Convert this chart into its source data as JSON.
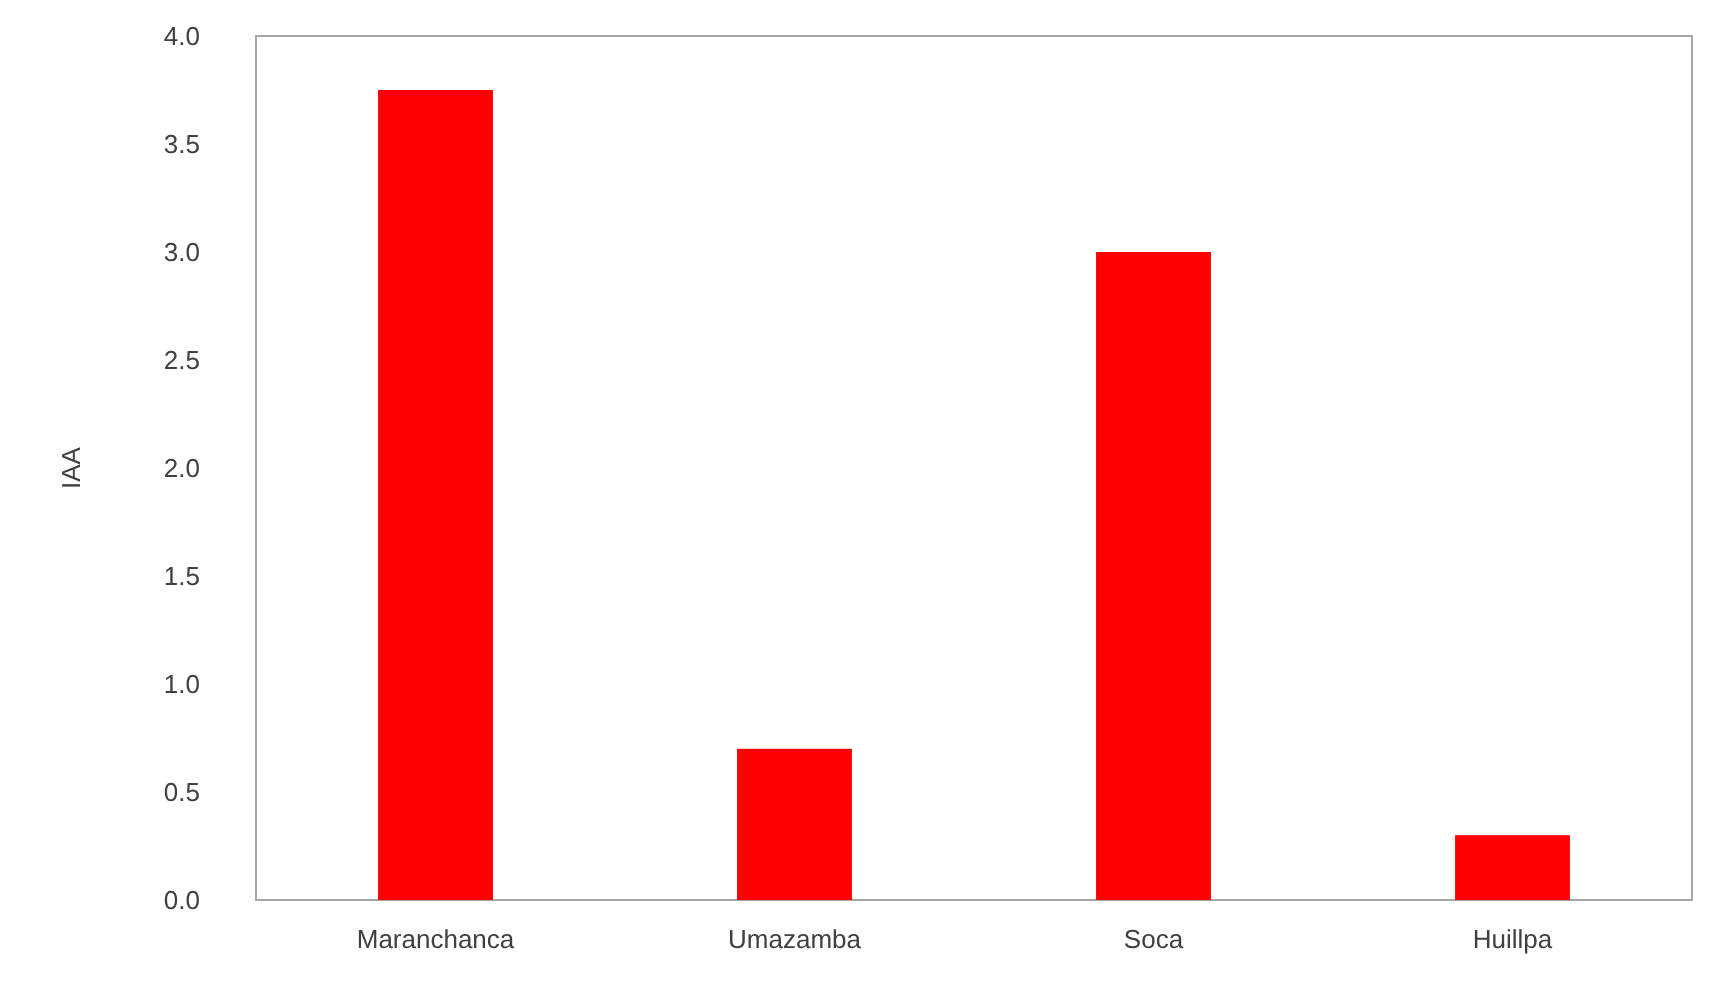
{
  "chart_data": {
    "type": "bar",
    "ylabel": "IAA",
    "categories": [
      "Maranchanca",
      "Umazamba",
      "Soca",
      "Huillpa"
    ],
    "values": [
      3.75,
      0.7,
      3.0,
      0.3
    ],
    "color": "#ff0000",
    "ylim": [
      0,
      4
    ],
    "yticks": [
      {
        "value": 0,
        "label": "0.0"
      },
      {
        "value": 0.5,
        "label": "0.5"
      },
      {
        "value": 1,
        "label": "1.0"
      },
      {
        "value": 1.5,
        "label": "1.5"
      },
      {
        "value": 2,
        "label": "2.0"
      },
      {
        "value": 2.5,
        "label": "2.5"
      },
      {
        "value": 3,
        "label": "3.0"
      },
      {
        "value": 3.5,
        "label": "3.5"
      },
      {
        "value": 4,
        "label": "4.0"
      }
    ]
  }
}
